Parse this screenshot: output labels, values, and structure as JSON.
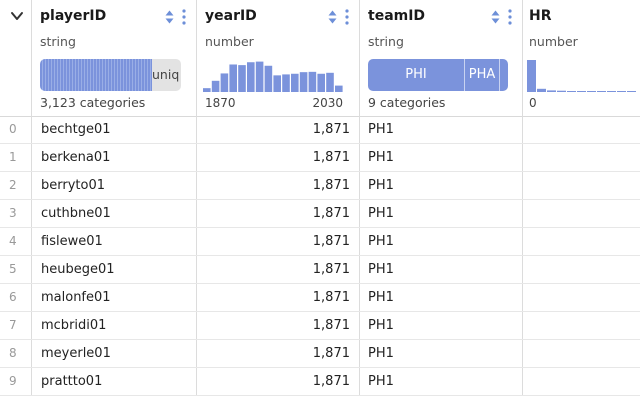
{
  "header": {
    "columns": [
      {
        "name": "playerID",
        "type": "string",
        "summary": "3,123 categories",
        "unique_label": "uniq"
      },
      {
        "name": "yearID",
        "type": "number",
        "range_min": "1870",
        "range_max": "2030",
        "histogram": [
          0.12,
          0.35,
          0.58,
          0.86,
          0.84,
          0.93,
          0.95,
          0.82,
          0.52,
          0.55,
          0.57,
          0.62,
          0.63,
          0.57,
          0.6,
          0.2
        ]
      },
      {
        "name": "teamID",
        "type": "string",
        "summary": "9 categories",
        "top_category": "PHI",
        "second_category": "PHA"
      },
      {
        "name": "HR",
        "type": "number",
        "range_min": "0",
        "histogram": [
          1.0,
          0.1,
          0.05,
          0.04,
          0.03,
          0.03,
          0.02,
          0.02,
          0.02,
          0.02,
          0.02
        ]
      }
    ]
  },
  "colors": {
    "accent": "#7b93dc",
    "accent_dark": "#5f77c4",
    "muted": "#e6e6e6",
    "icon": "#6d8fd8"
  },
  "rows": [
    {
      "index": "0",
      "playerID": "bechtge01",
      "yearID": "1,871",
      "teamID": "PH1",
      "HR": ""
    },
    {
      "index": "1",
      "playerID": "berkena01",
      "yearID": "1,871",
      "teamID": "PH1",
      "HR": ""
    },
    {
      "index": "2",
      "playerID": "berryto01",
      "yearID": "1,871",
      "teamID": "PH1",
      "HR": ""
    },
    {
      "index": "3",
      "playerID": "cuthbne01",
      "yearID": "1,871",
      "teamID": "PH1",
      "HR": ""
    },
    {
      "index": "4",
      "playerID": "fislewe01",
      "yearID": "1,871",
      "teamID": "PH1",
      "HR": ""
    },
    {
      "index": "5",
      "playerID": "heubege01",
      "yearID": "1,871",
      "teamID": "PH1",
      "HR": ""
    },
    {
      "index": "6",
      "playerID": "malonfe01",
      "yearID": "1,871",
      "teamID": "PH1",
      "HR": ""
    },
    {
      "index": "7",
      "playerID": "mcbridi01",
      "yearID": "1,871",
      "teamID": "PH1",
      "HR": ""
    },
    {
      "index": "8",
      "playerID": "meyerle01",
      "yearID": "1,871",
      "teamID": "PH1",
      "HR": ""
    },
    {
      "index": "9",
      "playerID": "prattto01",
      "yearID": "1,871",
      "teamID": "PH1",
      "HR": ""
    }
  ]
}
